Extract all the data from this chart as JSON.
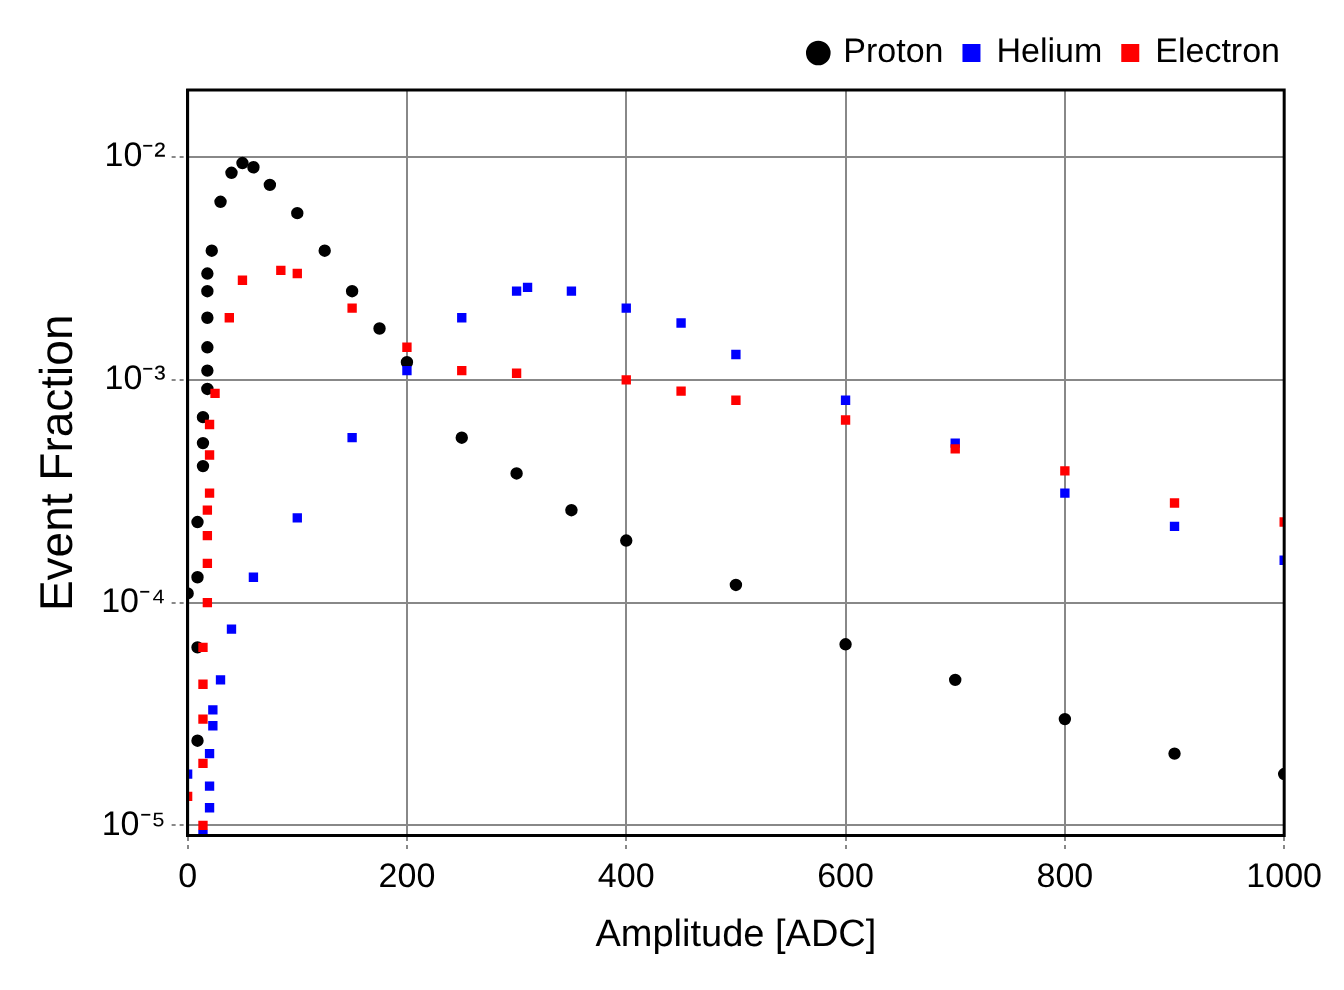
{
  "chart_data": {
    "type": "scatter",
    "xlabel": "Amplitude [ADC]",
    "ylabel": "Event Fraction",
    "log": "y",
    "grid": true,
    "legend": "top right",
    "xlim": [
      0,
      1000
    ],
    "xticks": [
      0,
      200,
      400,
      600,
      800,
      1000
    ],
    "ylim": [
      9e-06,
      0.02
    ],
    "yticks": [
      {
        "value": 1e-05,
        "label": "10⁻⁵"
      },
      {
        "value": 0.0001,
        "label": "10⁻⁴"
      },
      {
        "value": 0.001,
        "label": "10⁻³"
      },
      {
        "value": 0.01,
        "label": "10⁻²"
      }
    ],
    "series": [
      {
        "name": "Proton",
        "color": "#000000",
        "marker": "circle",
        "x": [
          0,
          9,
          9,
          9,
          9,
          14,
          14,
          14,
          18,
          18,
          18,
          18,
          18,
          18,
          22,
          30,
          40,
          50,
          60,
          75,
          100,
          125,
          150,
          175,
          200,
          250,
          300,
          350,
          400,
          500,
          600,
          700,
          800,
          900,
          1000
        ],
        "values": [
          0.00011,
          2.4e-05,
          6.3e-05,
          0.00013,
          0.00023,
          0.00041,
          0.00052,
          0.00068,
          0.00091,
          0.0011,
          0.0014,
          0.0019,
          0.0025,
          0.003,
          0.0038,
          0.0063,
          0.0085,
          0.0094,
          0.009,
          0.0075,
          0.0056,
          0.0038,
          0.0025,
          0.0017,
          0.0012,
          0.00055,
          0.00038,
          0.00026,
          0.00019,
          0.00012,
          6.5e-05,
          4.5e-05,
          3e-05,
          2.1e-05,
          1.7e-05
        ]
      },
      {
        "name": "Helium",
        "color": "#0000ff",
        "marker": "square",
        "x": [
          0,
          14,
          20,
          20,
          20,
          23,
          23,
          30,
          40,
          60,
          100,
          150,
          200,
          250,
          300,
          310,
          350,
          400,
          450,
          500,
          600,
          700,
          800,
          900,
          1000
        ],
        "values": [
          1.7e-05,
          9.1e-06,
          1.2e-05,
          1.5e-05,
          2.1e-05,
          2.8e-05,
          3.3e-05,
          4.5e-05,
          7.6e-05,
          0.00013,
          0.00024,
          0.00055,
          0.0011,
          0.0019,
          0.0025,
          0.0026,
          0.0025,
          0.0021,
          0.0018,
          0.0013,
          0.00081,
          0.00052,
          0.00031,
          0.00022,
          0.000155
        ]
      },
      {
        "name": "Electron",
        "color": "#ff0000",
        "marker": "square",
        "x": [
          0,
          14,
          14,
          14,
          14,
          14,
          18,
          18,
          18,
          18,
          20,
          20,
          20,
          25,
          38,
          50,
          85,
          100,
          150,
          200,
          250,
          300,
          400,
          450,
          500,
          600,
          700,
          800,
          900,
          1000
        ],
        "values": [
          1.35e-05,
          1e-05,
          1.9e-05,
          3e-05,
          4.3e-05,
          6.3e-05,
          0.0001,
          0.00015,
          0.0002,
          0.00026,
          0.00031,
          0.00046,
          0.00063,
          0.00087,
          0.0019,
          0.0028,
          0.0031,
          0.003,
          0.0021,
          0.0014,
          0.0011,
          0.00107,
          0.001,
          0.00089,
          0.00081,
          0.00066,
          0.00049,
          0.00039,
          0.00028,
          0.00023
        ]
      }
    ]
  }
}
